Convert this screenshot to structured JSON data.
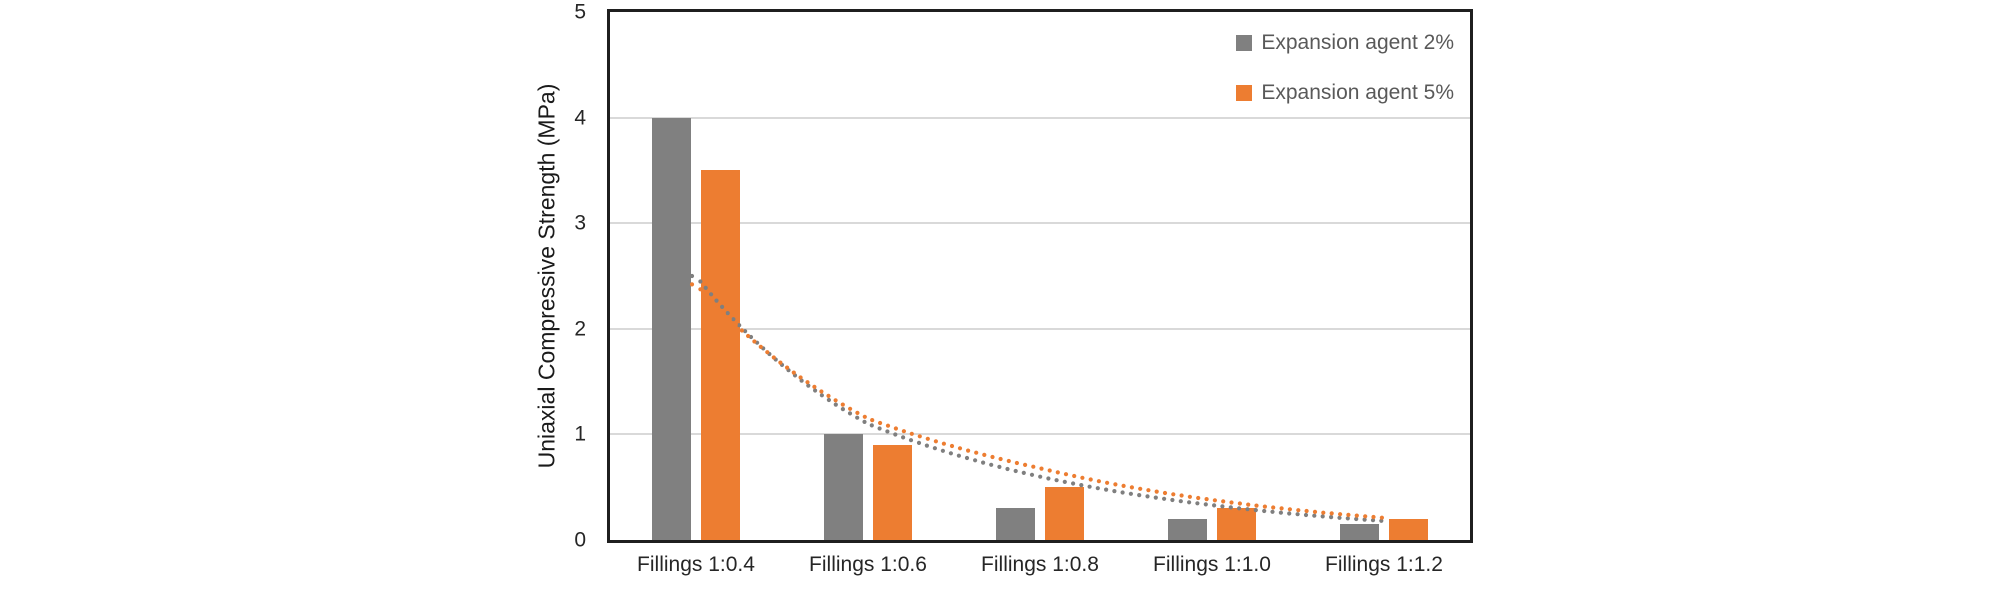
{
  "chart_data": {
    "type": "bar",
    "title": "",
    "ylabel": "Uniaxial Compressive Strength (MPa)",
    "xlabel": "",
    "ylim": [
      0,
      5
    ],
    "yticks": [
      0,
      1,
      2,
      3,
      4,
      5
    ],
    "grid": true,
    "legend_position": "top-right-inside",
    "categories": [
      "Fillings 1:0.4",
      "Fillings 1:0.6",
      "Fillings 1:0.8",
      "Fillings 1:1.0",
      "Fillings 1:1.2"
    ],
    "series": [
      {
        "name": "Expansion agent 2%",
        "color": "#808080",
        "values": [
          4.0,
          1.0,
          0.3,
          0.2,
          0.15
        ]
      },
      {
        "name": "Expansion agent 5%",
        "color": "#ED7D31",
        "values": [
          3.5,
          0.9,
          0.5,
          0.3,
          0.2
        ]
      }
    ],
    "trendlines": [
      {
        "for_series": "Expansion agent 2%",
        "style": "dotted",
        "color": "#7F7F7F",
        "values_at_categories": [
          2.5,
          1.1,
          0.6,
          0.33,
          0.18
        ]
      },
      {
        "for_series": "Expansion agent 5%",
        "style": "dotted",
        "color": "#ED7D31",
        "values_at_categories": [
          2.42,
          1.15,
          0.68,
          0.38,
          0.21
        ]
      }
    ],
    "colors": {
      "axis_text": "#262626",
      "legend_text": "#595959",
      "gridline": "#D9D9D9",
      "plot_border": "#1F1F1F",
      "background": "#FFFFFF"
    }
  }
}
